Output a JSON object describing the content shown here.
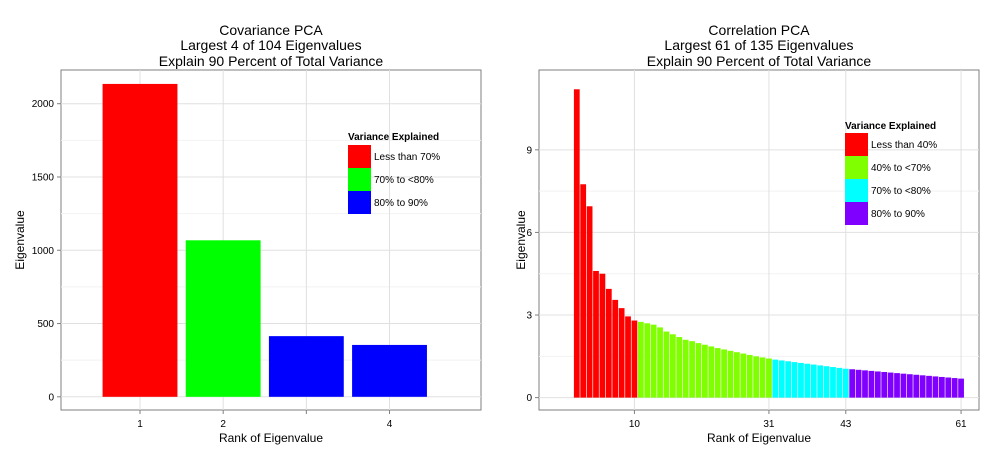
{
  "chart_data": [
    {
      "type": "bar",
      "title": [
        "Covariance PCA",
        "Largest 4 of 104 Eigenvalues",
        "Explain  90 Percent of Total Variance"
      ],
      "xlabel": "Rank of Eigenvalue",
      "ylabel": "Eigenvalue",
      "categories": [
        1,
        2,
        3,
        4
      ],
      "x_tick_labels": [
        "1",
        "2",
        "",
        "4"
      ],
      "values": [
        2135,
        1068,
        414,
        354
      ],
      "groups": [
        0,
        1,
        2,
        2
      ],
      "ylim": [
        -90,
        2230
      ],
      "xlim": [
        0.05,
        5.1
      ],
      "yticks": [
        0,
        500,
        1000,
        1500,
        2000
      ],
      "grid": true,
      "legend": {
        "title": "Variance Explained",
        "position": "right",
        "entries": [
          {
            "label": "Less than 70%",
            "color": "#FF0000"
          },
          {
            "label": "70% to <80%",
            "color": "#00FF00"
          },
          {
            "label": "80% to 90%",
            "color": "#0000FF"
          }
        ]
      }
    },
    {
      "type": "bar",
      "title": [
        "Correlation PCA",
        "Largest 61 of 135 Eigenvalues",
        "Explain  90 Percent of Total Variance"
      ],
      "xlabel": "Rank of Eigenvalue",
      "ylabel": "Eigenvalue",
      "x_ticks": [
        10,
        31,
        43,
        61
      ],
      "values": [
        11.2,
        7.75,
        6.95,
        4.6,
        4.5,
        3.95,
        3.55,
        3.25,
        2.95,
        2.8,
        2.75,
        2.7,
        2.65,
        2.55,
        2.4,
        2.3,
        2.2,
        2.1,
        2.05,
        1.98,
        1.92,
        1.86,
        1.8,
        1.75,
        1.7,
        1.65,
        1.6,
        1.55,
        1.5,
        1.46,
        1.42,
        1.38,
        1.35,
        1.32,
        1.29,
        1.26,
        1.23,
        1.2,
        1.17,
        1.14,
        1.11,
        1.08,
        1.05,
        1.03,
        1.01,
        0.99,
        0.97,
        0.95,
        0.93,
        0.91,
        0.89,
        0.87,
        0.85,
        0.83,
        0.81,
        0.79,
        0.77,
        0.75,
        0.73,
        0.71,
        0.69
      ],
      "group_ranges": [
        [
          1,
          10,
          0
        ],
        [
          11,
          31,
          1
        ],
        [
          32,
          43,
          2
        ],
        [
          44,
          61,
          3
        ]
      ],
      "ylim": [
        -0.45,
        11.9
      ],
      "xlim": [
        -4.9,
        63.8
      ],
      "yticks": [
        0,
        3,
        6,
        9
      ],
      "grid": true,
      "legend": {
        "title": "Variance Explained",
        "position": "right",
        "entries": [
          {
            "label": "Less than 40%",
            "color": "#FF0000"
          },
          {
            "label": "40% to <70%",
            "color": "#80FF00"
          },
          {
            "label": "70% to <80%",
            "color": "#00FFFF"
          },
          {
            "label": "80% to 90%",
            "color": "#8000FF"
          }
        ]
      }
    }
  ]
}
